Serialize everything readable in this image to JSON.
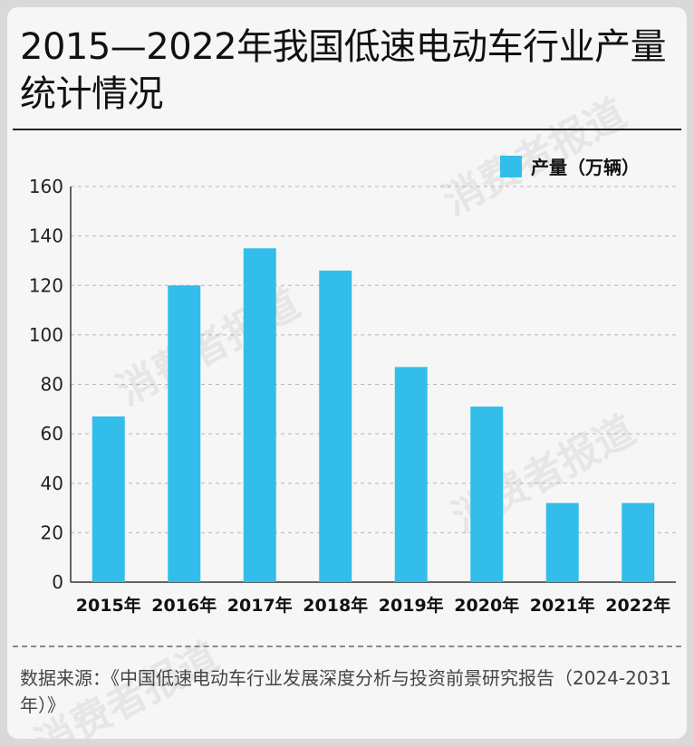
{
  "title": "2015—2022年我国低速电动车行业产量统计情况",
  "watermark": "消费者报道",
  "source": "数据来源：《中国低速电动车行业发展深度分析与投资前景研究报告（2024-2031年）》",
  "colors": {
    "bar": "#33bdea",
    "grid": "#b5b5b5",
    "axis": "#333333"
  },
  "chart_data": {
    "type": "bar",
    "title": "2015—2022年我国低速电动车行业产量统计情况",
    "categories": [
      "2015年",
      "2016年",
      "2017年",
      "2018年",
      "2019年",
      "2020年",
      "2021年",
      "2022年"
    ],
    "series": [
      {
        "name": "产量（万辆）",
        "values": [
          67,
          120,
          135,
          126,
          87,
          71,
          32,
          32
        ]
      }
    ],
    "yticks": [
      0,
      20,
      40,
      60,
      80,
      100,
      120,
      140,
      160
    ],
    "ylim": [
      0,
      160
    ],
    "xlabel": "",
    "ylabel": "",
    "legend_position": "top-right",
    "grid": true
  }
}
